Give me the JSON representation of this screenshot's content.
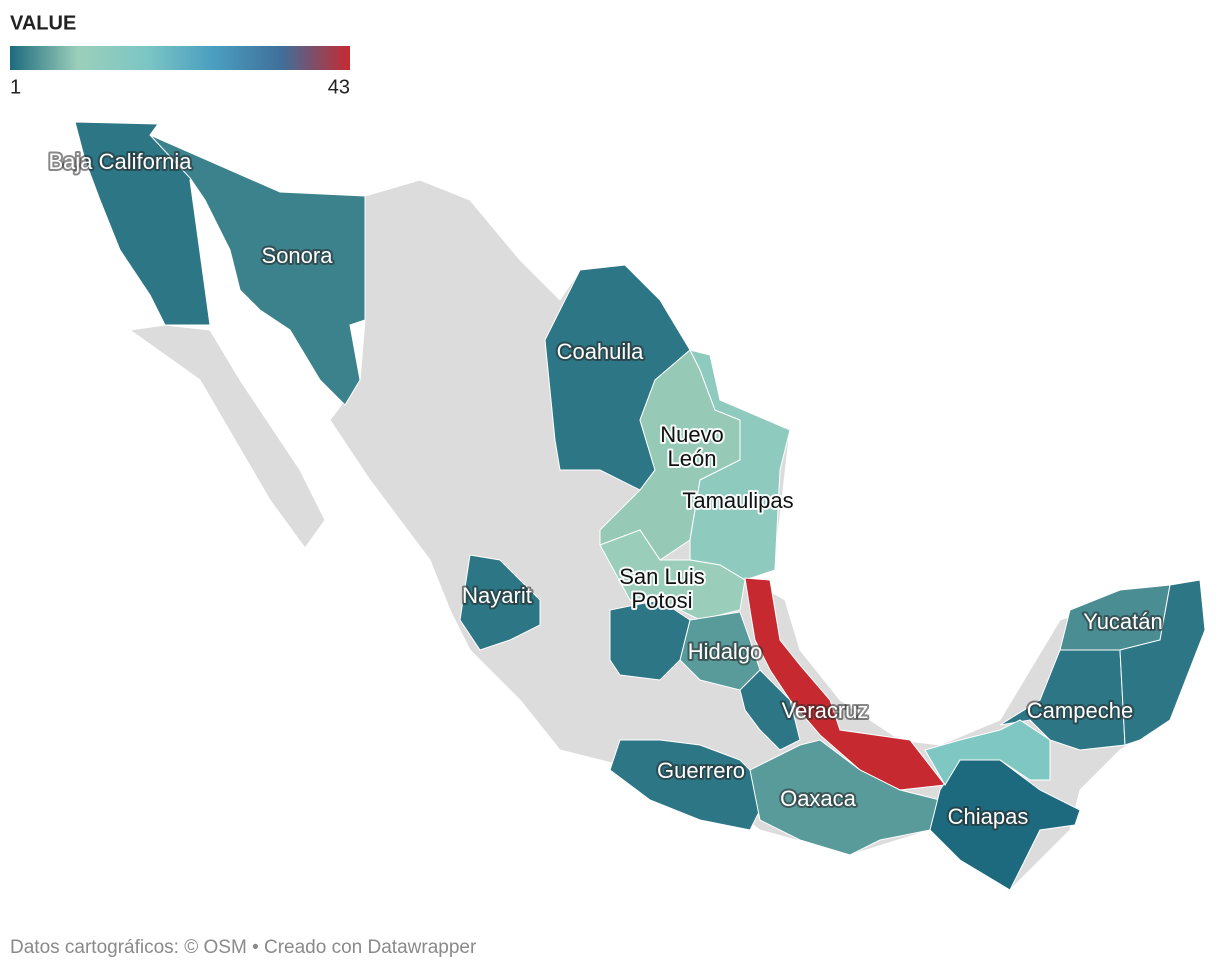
{
  "legend": {
    "title": "VALUE",
    "min": 1,
    "max": 43,
    "colors": [
      "#1d6a7f",
      "#9ccfba",
      "#7cc6c4",
      "#4a9ec0",
      "#3f6f9a",
      "#c62a30"
    ]
  },
  "regions": [
    {
      "name": "Baja California",
      "value": 2
    },
    {
      "name": "Sonora",
      "value": 3
    },
    {
      "name": "Coahuila",
      "value": 2
    },
    {
      "name": [
        "Nuevo",
        "León"
      ],
      "value": 9
    },
    {
      "name": "Tamaulipas",
      "value": 13
    },
    {
      "name": [
        "San Luis",
        "Potosi"
      ],
      "value": 10
    },
    {
      "name": "Nayarit",
      "value": 2
    },
    {
      "name": "Hidalgo",
      "value": 5
    },
    {
      "name": "Veracruz",
      "value": 43
    },
    {
      "name": "Guerrero",
      "value": 2
    },
    {
      "name": "Oaxaca",
      "value": 5
    },
    {
      "name": "Chiapas",
      "value": 1
    },
    {
      "name": "Campeche",
      "value": 2
    },
    {
      "name": "Yucatán",
      "value": 4
    },
    {
      "value": 17
    },
    {
      "value": 2
    },
    {
      "value": 2
    },
    {
      "value": 2
    }
  ],
  "footer": "Datos cartográficos: © OSM  • Creado con Datawrapper"
}
